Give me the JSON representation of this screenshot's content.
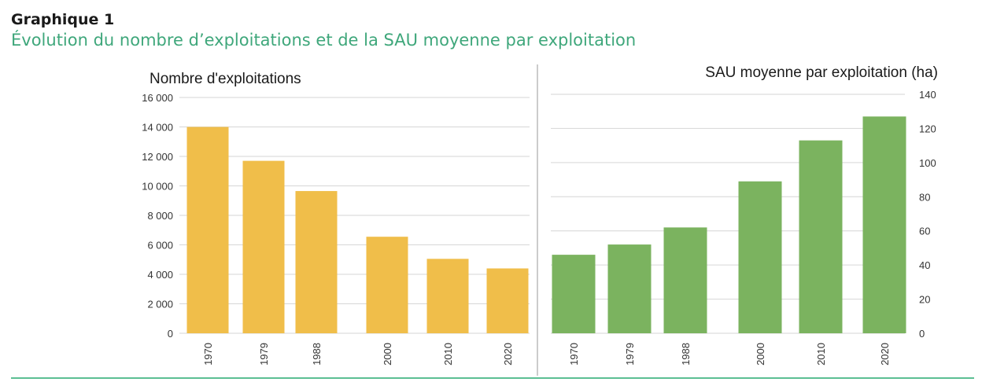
{
  "caption": {
    "label": "Graphique 1",
    "title": "Évolution du nombre d’exploitations et de la SAU moyenne par exploitation"
  },
  "colors": {
    "title_accent": "#3fa77b",
    "bar_left": "#f0be4a",
    "bar_right": "#7bb35f",
    "gridline": "#d6d6d6",
    "divider": "#9a9a9a",
    "text": "#333333",
    "rule": "#5cbf93"
  },
  "chart_data": [
    {
      "type": "bar",
      "title": "Nombre d'exploitations",
      "categories": [
        "1970",
        "1979",
        "1988",
        "2000",
        "2010",
        "2020"
      ],
      "values": [
        14000,
        11700,
        9650,
        6550,
        5050,
        4400
      ],
      "ylim": [
        0,
        16000
      ],
      "yticks": [
        "0",
        "2 000",
        "4 000",
        "6 000",
        "8 000",
        "10 000",
        "12 000",
        "14 000",
        "16 000"
      ],
      "yaxis_side": "left",
      "grid": true,
      "xlabel": "",
      "ylabel": ""
    },
    {
      "type": "bar",
      "title": "SAU moyenne par exploitation (ha)",
      "categories": [
        "1970",
        "1979",
        "1988",
        "2000",
        "2010",
        "2020"
      ],
      "values": [
        46,
        52,
        62,
        89,
        113,
        127
      ],
      "ylim": [
        0,
        140
      ],
      "yticks": [
        "0",
        "20",
        "40",
        "60",
        "80",
        "100",
        "120",
        "140"
      ],
      "yaxis_side": "right",
      "grid": true,
      "xlabel": "",
      "ylabel": ""
    }
  ]
}
